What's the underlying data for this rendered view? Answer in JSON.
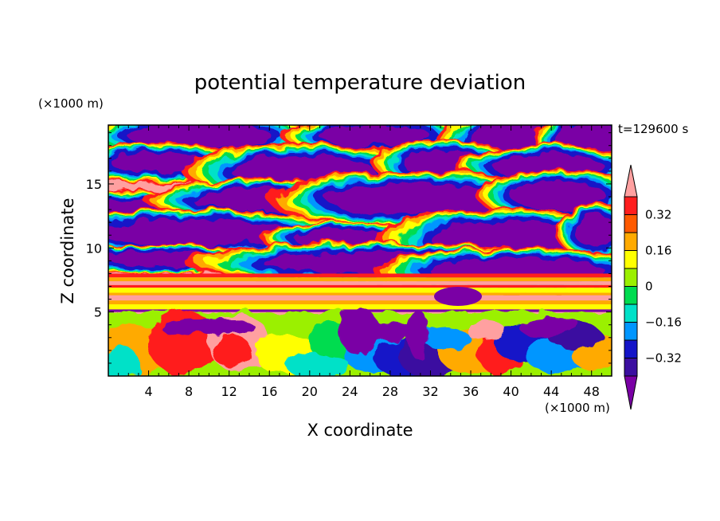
{
  "chart_data": {
    "type": "heatmap",
    "title": "potential temperature deviation",
    "xlabel": "X coordinate",
    "ylabel": "Z coordinate",
    "x_unit": "(×1000 m)",
    "y_unit": "(×1000 m)",
    "time_label": "t=129600 s",
    "xlim": [
      0,
      50
    ],
    "ylim": [
      0,
      19.6
    ],
    "x_ticks": [
      4,
      8,
      12,
      16,
      20,
      24,
      28,
      32,
      36,
      40,
      44,
      48
    ],
    "y_ticks": [
      5,
      10,
      15
    ],
    "colorbar": {
      "levels": [
        -0.4,
        -0.32,
        -0.24,
        -0.16,
        -0.08,
        0,
        0.08,
        0.16,
        0.24,
        0.32,
        0.4
      ],
      "labels": [
        "0.32",
        "0.16",
        "0",
        "−0.16",
        "−0.32"
      ],
      "label_values": [
        0.32,
        0.16,
        0,
        -0.16,
        -0.32
      ],
      "colors": [
        "#7a00a5",
        "#3b0fa0",
        "#1414c8",
        "#0096ff",
        "#00e1c8",
        "#00dc50",
        "#9bf000",
        "#ffff00",
        "#ffaa00",
        "#ff5a00",
        "#ff1e1e",
        "#ffa0a0"
      ]
    },
    "layers": [
      {
        "z_range": [
          19.6,
          14.5
        ],
        "description": "mixed",
        "values": [
          "high",
          "low"
        ]
      },
      {
        "z_range": [
          14.5,
          10.5
        ],
        "values": [
          "high",
          "low"
        ]
      },
      {
        "z_range": [
          10.5,
          8
        ],
        "values": [
          "low",
          "high"
        ]
      },
      {
        "z_range": [
          8,
          7.2
        ],
        "values": [
          "high"
        ]
      },
      {
        "z_range": [
          7.2,
          6.3
        ],
        "values": [
          "mid-high"
        ]
      },
      {
        "z_range": [
          6.3,
          5.8
        ],
        "values": [
          "high"
        ]
      },
      {
        "z_range": [
          5.8,
          5
        ],
        "values": [
          "mid-high"
        ]
      },
      {
        "z_range": [
          5,
          0
        ],
        "values": [
          "mixed"
        ]
      }
    ]
  }
}
